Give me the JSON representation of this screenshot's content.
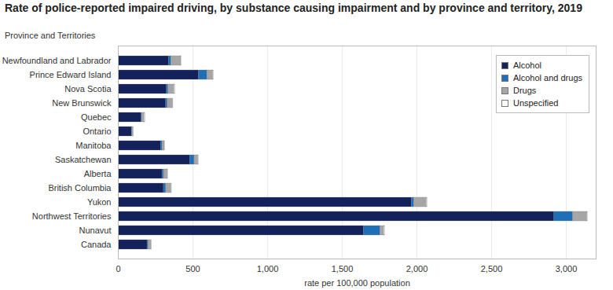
{
  "chart_data": {
    "type": "bar",
    "title": "Rate of police-reported impaired driving, by substance causing impairment and by province and territory, 2019",
    "ylabel": "Province and Territories",
    "xlabel": "rate per 100,000 population",
    "orientation": "horizontal",
    "stacked": true,
    "grid": true,
    "legend": "top-right",
    "categories": [
      "Newfoundland and Labrador",
      "Prince Edward Island",
      "Nova Scotia",
      "New Brunswick",
      "Quebec",
      "Ontario",
      "Manitoba",
      "Saskatchewan",
      "Alberta",
      "British Columbia",
      "Yukon",
      "Northwest Territories",
      "Nunavut",
      "Canada"
    ],
    "series": [
      {
        "name": "Alcohol",
        "color": "#14225c",
        "values": [
          340,
          540,
          325,
          320,
          155,
          90,
          285,
          480,
          295,
          305,
          1965,
          2920,
          1645,
          195
        ]
      },
      {
        "name": "Alcohol and drugs",
        "color": "#1f6fb8",
        "values": [
          15,
          55,
          10,
          10,
          5,
          3,
          10,
          30,
          10,
          15,
          15,
          125,
          110,
          7
        ]
      },
      {
        "name": "Drugs",
        "color": "#a6a6a6",
        "values": [
          65,
          40,
          40,
          35,
          15,
          8,
          15,
          25,
          25,
          35,
          85,
          95,
          25,
          20
        ]
      },
      {
        "name": "Unspecified",
        "color": "#ffffff",
        "values": [
          3,
          3,
          5,
          3,
          5,
          2,
          5,
          5,
          5,
          3,
          5,
          5,
          5,
          3
        ]
      }
    ],
    "xlim": [
      0,
      3200
    ],
    "xticks": [
      0,
      500,
      {
        "value": 1000,
        "label": "1,000"
      },
      {
        "value": 1500,
        "label": "1,500"
      },
      {
        "value": 2000,
        "label": "2,000"
      },
      {
        "value": 2500,
        "label": "2,500"
      },
      {
        "value": 3000,
        "label": "3,000"
      }
    ]
  }
}
